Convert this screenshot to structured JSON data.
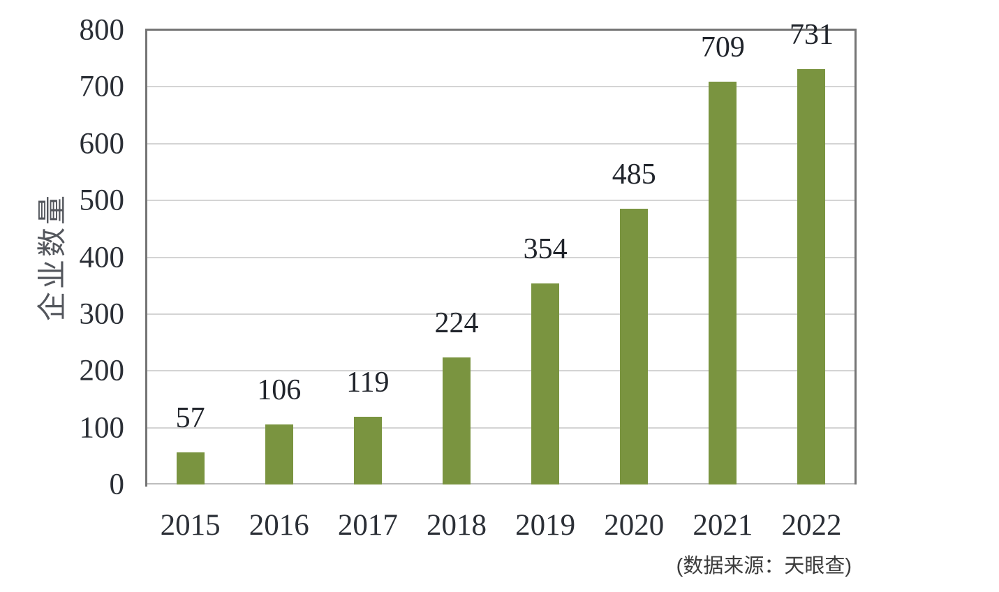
{
  "chart_data": {
    "type": "bar",
    "title": "",
    "categories": [
      "2015",
      "2016",
      "2017",
      "2018",
      "2019",
      "2020",
      "2021",
      "2022"
    ],
    "values": [
      57,
      106,
      119,
      224,
      354,
      485,
      709,
      731
    ],
    "data_labels_shown": true,
    "xlabel": "",
    "ylabel": "企业数量",
    "ylim": [
      0,
      800
    ],
    "yticks": [
      0,
      100,
      200,
      300,
      400,
      500,
      600,
      700,
      800
    ],
    "grid": "horizontal",
    "legend_position": "none",
    "source_note": "(数据来源：天眼查)"
  },
  "colors": {
    "bar": "#7A9440",
    "gridline": "#d4d4d4",
    "axis_border": "#757575",
    "baseline": "#bdbdbd",
    "tick_text": "#2b2f36",
    "data_label_text": "#20242b",
    "y_title_text": "#53565c",
    "source_text": "#3c3c3c"
  }
}
